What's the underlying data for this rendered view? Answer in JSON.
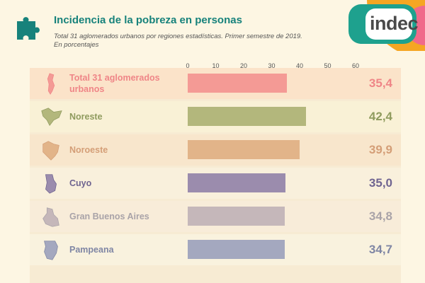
{
  "header": {
    "title": "Incidencia de la pobreza en personas",
    "subtitle": "Total 31 aglomerados urbanos por regiones estadísticas. Primer semestre de 2019.",
    "subtitle2": "En porcentajes",
    "logo": "indec"
  },
  "colors": {
    "teal": "#17827b",
    "logo_orange": "#f5a623",
    "logo_green": "#1ea18e",
    "logo_pink": "#f06a8a"
  },
  "chart_data": {
    "type": "bar",
    "orientation": "horizontal",
    "title": "Incidencia de la pobreza en personas",
    "xlim": [
      0,
      60
    ],
    "xticks": [
      "0",
      "10",
      "20",
      "30",
      "40",
      "50",
      "60"
    ],
    "categories": [
      "Total 31 aglomerados urbanos",
      "Noreste",
      "Noroeste",
      "Cuyo",
      "Gran Buenos Aires",
      "Pampeana"
    ],
    "values": [
      35.4,
      42.4,
      39.9,
      35.0,
      34.8,
      34.7
    ],
    "value_labels": [
      "35,4",
      "42,4",
      "39,9",
      "35,0",
      "34,8",
      "34,7"
    ],
    "bar_colors": [
      "#f49a95",
      "#b3b77c",
      "#e2b489",
      "#9b8cad",
      "#c5b7ba",
      "#a4a8bf"
    ],
    "label_colors": [
      "#ef8587",
      "#8f9b5e",
      "#d49e77",
      "#6f6490",
      "#a9a3a8",
      "#7f86a4"
    ],
    "row_colors": [
      "#fbe3c9",
      "#f9f1d6",
      "#f8e6cc",
      "#f9f0dc",
      "#f8ecd9",
      "#f9f2de"
    ]
  }
}
